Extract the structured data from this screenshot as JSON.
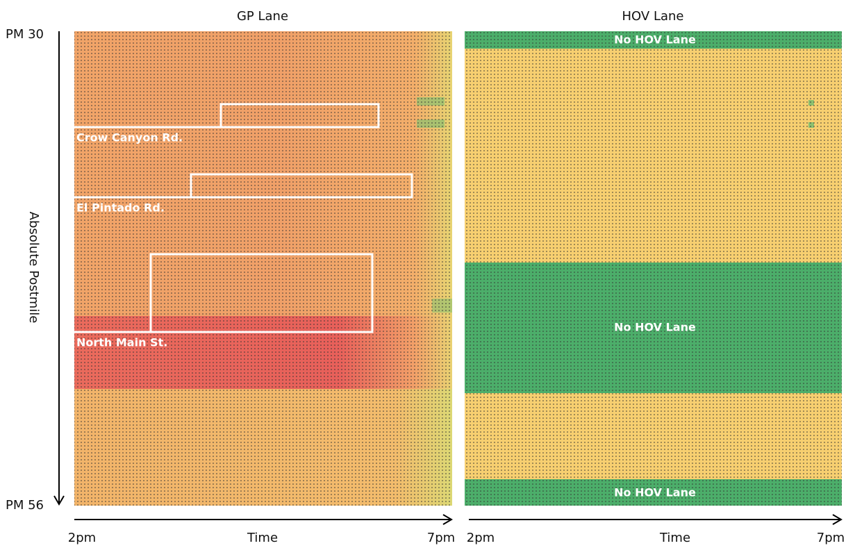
{
  "y_axis": {
    "label": "Absolute Postmile",
    "start": "PM 30",
    "end": "PM 56"
  },
  "panels": [
    {
      "title": "GP Lane",
      "annotations": [
        "Crow Canyon Rd.",
        "El Pintado Rd.",
        "North Main St."
      ],
      "x_axis": {
        "label": "Time",
        "start": "2pm",
        "end": "7pm"
      }
    },
    {
      "title": "HOV Lane",
      "annotations": [
        "No HOV Lane",
        "No HOV Lane",
        "No HOV Lane"
      ],
      "x_axis": {
        "label": "Time",
        "start": "2pm",
        "end": "7pm"
      }
    }
  ]
}
